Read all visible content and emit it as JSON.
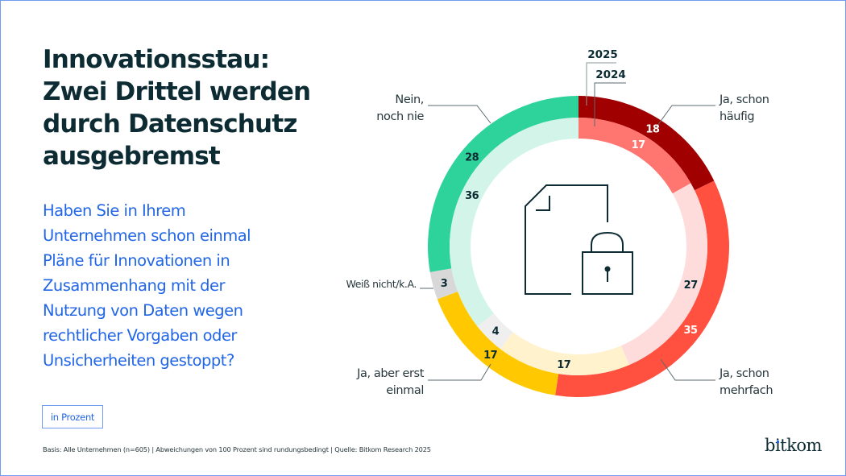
{
  "header": {
    "title_lines": [
      "Innovationsstau:",
      "Zwei Drittel werden",
      "durch Datenschutz",
      "ausgebremst"
    ],
    "question_lines": [
      "Haben Sie in Ihrem",
      "Unternehmen schon einmal",
      "Pläne für Innovationen in",
      "Zusammenhang mit der",
      "Nutzung von Daten wegen",
      "rechtlicher Vorgaben oder",
      "Unsicherheiten gestoppt?"
    ]
  },
  "unit_label": "in Prozent",
  "footnote": "Basis: Alle Unternehmen (n=605) | Abweichungen von 100 Prozent sind rundungsbedingt | Quelle: Bitkom Research 2025",
  "logo": "bitkom",
  "center_icon": "document-lock-icon",
  "colors": {
    "frame": "#6f9cf0",
    "title": "#0c2b33",
    "question": "#2266e8"
  },
  "chart_data": {
    "type": "pie",
    "subtype": "nested-donut",
    "title": "Innovationsstau: Zwei Drittel werden durch Datenschutz ausgebremst",
    "unit": "Prozent",
    "start": "top",
    "direction": "clockwise",
    "categories": [
      "Ja, schon häufig",
      "Ja, schon mehrfach",
      "Ja, aber erst einmal",
      "Weiß nicht/k.A.",
      "Nein, noch nie"
    ],
    "category_label_lines": [
      [
        "Ja, schon",
        "häufig"
      ],
      [
        "Ja, schon",
        "mehrfach"
      ],
      [
        "Ja, aber erst",
        "einmal"
      ],
      [
        "Weiß nicht/k.A."
      ],
      [
        "Nein,",
        "noch nie"
      ]
    ],
    "series": [
      {
        "name": "2025",
        "ring": "outer",
        "values": [
          18,
          35,
          17,
          3,
          28
        ],
        "colors": [
          "#a00000",
          "#ff5040",
          "#ffc800",
          "#d8d8d8",
          "#2ed39b"
        ],
        "label_colors": [
          "#ffffff",
          "#ffffff",
          "#0c2b33",
          "#0c2b33",
          "#0c2b33"
        ]
      },
      {
        "name": "2024",
        "ring": "inner",
        "values": [
          17,
          27,
          17,
          4,
          36
        ],
        "colors": [
          "#ff7570",
          "#ffdcdc",
          "#fff2cc",
          "#efefef",
          "#d3f5e9"
        ],
        "label_colors": [
          "#ffffff",
          "#0c2b33",
          "#0c2b33",
          "#0c2b33",
          "#0c2b33"
        ]
      }
    ]
  }
}
